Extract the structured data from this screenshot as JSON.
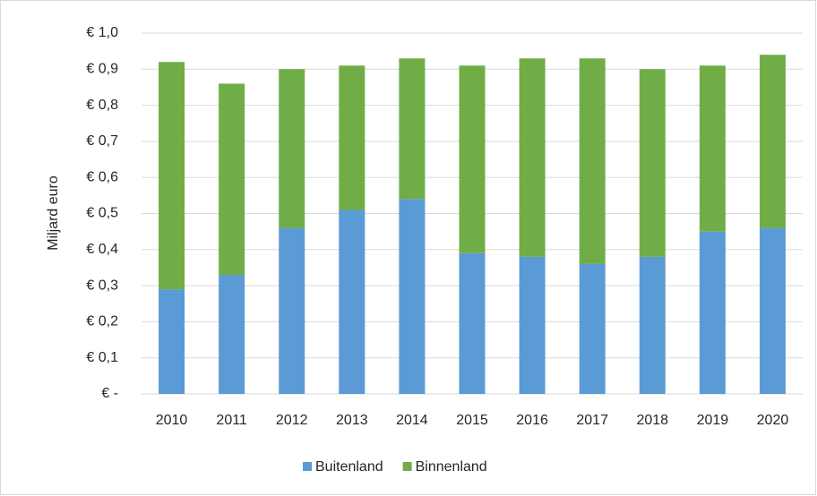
{
  "chart_data": {
    "type": "stacked_bar",
    "y_label": "Miljard euro",
    "categories": [
      "2010",
      "2011",
      "2012",
      "2013",
      "2014",
      "2015",
      "2016",
      "2017",
      "2018",
      "2019",
      "2020"
    ],
    "series": [
      {
        "name": "Buitenland",
        "color": "#5b9bd5",
        "values": [
          0.29,
          0.33,
          0.46,
          0.51,
          0.54,
          0.39,
          0.38,
          0.36,
          0.38,
          0.45,
          0.46
        ]
      },
      {
        "name": "Binnenland",
        "color": "#70ad47",
        "values": [
          0.63,
          0.53,
          0.44,
          0.4,
          0.39,
          0.52,
          0.55,
          0.57,
          0.52,
          0.46,
          0.48
        ]
      }
    ],
    "ylim": [
      0,
      1.0
    ],
    "yticks": [
      {
        "value": 0,
        "label": "€ -"
      },
      {
        "value": 0.1,
        "label": "€ 0,1"
      },
      {
        "value": 0.2,
        "label": "€ 0,2"
      },
      {
        "value": 0.3,
        "label": "€ 0,3"
      },
      {
        "value": 0.4,
        "label": "€ 0,4"
      },
      {
        "value": 0.5,
        "label": "€ 0,5"
      },
      {
        "value": 0.6,
        "label": "€ 0,6"
      },
      {
        "value": 0.7,
        "label": "€ 0,7"
      },
      {
        "value": 0.8,
        "label": "€ 0,8"
      },
      {
        "value": 0.9,
        "label": "€ 0,9"
      },
      {
        "value": 1.0,
        "label": "€ 1,0"
      }
    ],
    "grid": true,
    "legend": "bottom"
  }
}
